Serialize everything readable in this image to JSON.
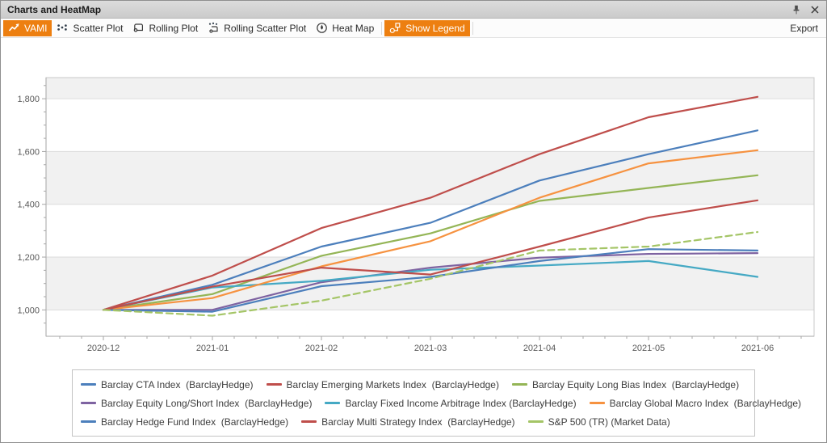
{
  "window": {
    "title": "Charts and HeatMap"
  },
  "titlebar": {
    "pin_icon": "pin-icon",
    "close_icon": "close-icon"
  },
  "toolbar": {
    "buttons": [
      {
        "label": "VAMI",
        "icon": "line-chart-icon",
        "active": true,
        "sep_after": false
      },
      {
        "label": "Scatter Plot",
        "icon": "scatter-dots-icon",
        "active": false,
        "sep_after": false
      },
      {
        "label": "Rolling Plot",
        "icon": "scroll-icon",
        "active": false,
        "sep_after": false
      },
      {
        "label": "Rolling Scatter Plot",
        "icon": "scroll-scatter-icon",
        "active": false,
        "sep_after": false
      },
      {
        "label": "Heat Map",
        "icon": "heat-drop-icon",
        "active": false,
        "sep_after": true
      },
      {
        "label": "Show Legend",
        "icon": "legend-boxes-icon",
        "active": true,
        "sep_after": true
      }
    ],
    "export_label": "Export",
    "export_icon": "excel-file-icon"
  },
  "colors": {
    "accent_orange": "#ED7F10",
    "titlebar_bg": "#d4d4d4",
    "band_gray": "#f1f1f1",
    "gridline": "#dcdcdc",
    "plot_frame": "#c9c9c9",
    "axis_line": "#a6a6a6",
    "axis_text": "#595959"
  },
  "chart_data": {
    "type": "line",
    "title": "",
    "xlabel": "",
    "ylabel": "",
    "x": [
      "2020-12",
      "2021-01",
      "2021-02",
      "2021-03",
      "2021-04",
      "2021-05",
      "2021-06"
    ],
    "ylim": [
      900,
      1880
    ],
    "yticks": [
      1000,
      1200,
      1400,
      1600,
      1800
    ],
    "grid": "horizontal",
    "bands": "alternating-200",
    "legend_position": "bottom",
    "legend_rows": [
      [
        0,
        1,
        2
      ],
      [
        3,
        4,
        5
      ],
      [
        6,
        7,
        8
      ]
    ],
    "series": [
      {
        "name": "Barclay CTA Index  (BarclayHedge)",
        "color": "#4C7FBC",
        "dashed": false,
        "values": [
          1000,
          1095,
          1240,
          1330,
          1490,
          1590,
          1680
        ]
      },
      {
        "name": "Barclay Emerging Markets Index  (BarclayHedge)",
        "color": "#BF4E4B",
        "dashed": false,
        "values": [
          1000,
          1130,
          1310,
          1425,
          1590,
          1730,
          1807
        ]
      },
      {
        "name": "Barclay Equity Long Bias Index  (BarclayHedge)",
        "color": "#94B556",
        "dashed": false,
        "values": [
          1000,
          1060,
          1205,
          1290,
          1413,
          1462,
          1510
        ]
      },
      {
        "name": "Barclay Equity Long/Short Index  (BarclayHedge)",
        "color": "#7E63A1",
        "dashed": false,
        "values": [
          1000,
          1000,
          1105,
          1160,
          1198,
          1212,
          1215
        ]
      },
      {
        "name": "Barclay Fixed Income Arbitrage Index (BarclayHedge)",
        "color": "#45A9C4",
        "dashed": false,
        "values": [
          1000,
          1085,
          1110,
          1152,
          1168,
          1185,
          1125
        ]
      },
      {
        "name": "Barclay Global Macro Index  (BarclayHedge)",
        "color": "#F69240",
        "dashed": false,
        "values": [
          1000,
          1045,
          1165,
          1260,
          1425,
          1555,
          1605
        ]
      },
      {
        "name": "Barclay Hedge Fund Index  (BarclayHedge)",
        "color": "#4C7FBC",
        "dashed": false,
        "values": [
          1000,
          993,
          1090,
          1125,
          1185,
          1230,
          1225
        ]
      },
      {
        "name": "Barclay Multi Strategy Index  (BarclayHedge)",
        "color": "#BF4E4B",
        "dashed": false,
        "values": [
          1000,
          1088,
          1160,
          1134,
          1240,
          1350,
          1415
        ]
      },
      {
        "name": "S&P 500 (TR) (Market Data)",
        "color": "#A4C566",
        "dashed": true,
        "values": [
          1000,
          978,
          1035,
          1118,
          1225,
          1240,
          1295
        ]
      }
    ]
  }
}
